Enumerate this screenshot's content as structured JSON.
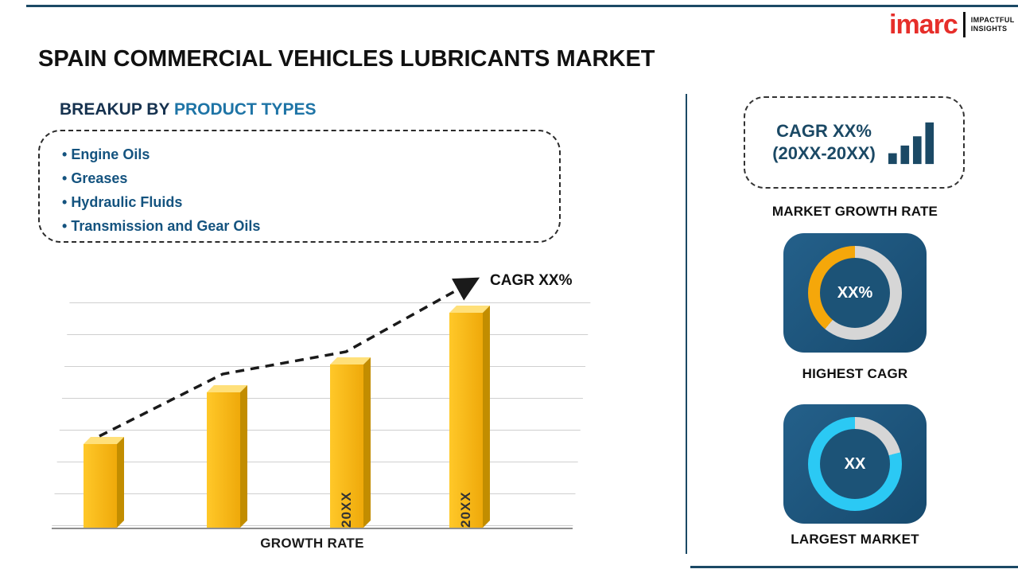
{
  "page": {
    "title": "SPAIN COMMERCIAL VEHICLES LUBRICANTS MARKET"
  },
  "logo": {
    "brand": "imarc",
    "tagline_line1": "IMPACTFUL",
    "tagline_line2": "INSIGHTS"
  },
  "breakup": {
    "heading_prefix": "BREAKUP BY ",
    "heading_highlight": "PRODUCT TYPES",
    "items": [
      "Engine Oils",
      "Greases",
      "Hydraulic Fluids",
      "Transmission and Gear Oils"
    ]
  },
  "chart_data": {
    "type": "bar",
    "title": "GROWTH RATE",
    "categories": [
      "",
      "",
      "20XX",
      "20XX"
    ],
    "bar_labels": [
      "",
      "",
      "20XX",
      "20XX"
    ],
    "values": [
      105,
      170,
      205,
      270
    ],
    "value_note": "relative bar heights estimated from gridlines; no numeric axis labels shown",
    "trend_label": "CAGR XX%",
    "xlabel": "GROWTH RATE",
    "ylabel": "",
    "grid": true,
    "bar_color": "#F2B200",
    "trend_color": "#1A1A1A"
  },
  "right_panel": {
    "cagr_box": {
      "line1": "CAGR XX%",
      "line2": "(20XX-20XX)",
      "icon": "bar-chart-icon"
    },
    "market_growth_label": "MARKET GROWTH RATE",
    "highest_cagr": {
      "value": "XX%",
      "label": "HIGHEST CAGR",
      "donut_pct": 39,
      "donut_color": "#F5A70A",
      "ring_color": "#D6D6D6"
    },
    "largest_market": {
      "value": "XX",
      "label": "LARGEST MARKET",
      "donut_pct": 79,
      "donut_color": "#2BC9F4",
      "ring_color": "#D6D6D6"
    }
  },
  "colors": {
    "accent_navy": "#1B4965",
    "heading_blue": "#1E74A6",
    "bar_yellow": "#F5B800",
    "logo_red": "#E62E2A",
    "card_bg": "#1D5478"
  }
}
